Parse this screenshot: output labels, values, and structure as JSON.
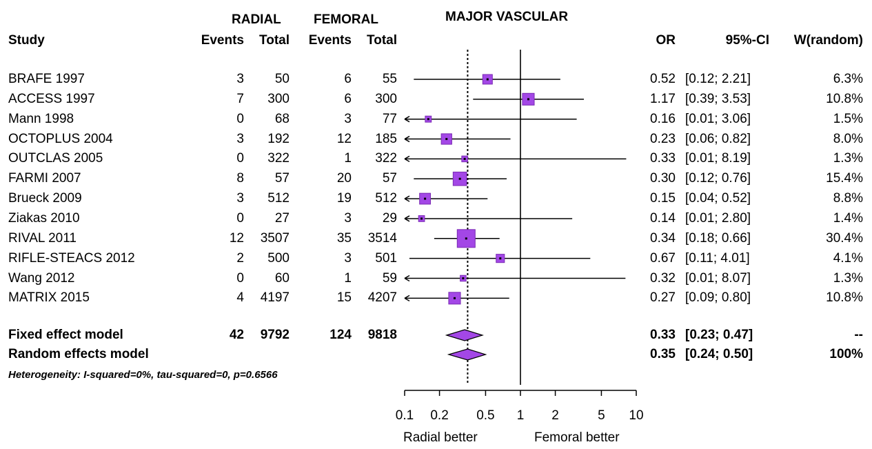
{
  "headers": {
    "plot_title": "MAJOR VASCULAR",
    "radial": "RADIAL",
    "femoral": "FEMORAL",
    "study": "Study",
    "events": "Events",
    "total": "Total",
    "or": "OR",
    "ci": "95%-CI",
    "weight": "W(random)"
  },
  "studies": [
    {
      "name": "BRAFE 1997",
      "r_events": "3",
      "r_total": "50",
      "f_events": "6",
      "f_total": "55",
      "or_text": "0.52",
      "ci_text": "[0.12; 2.21]",
      "w_text": "6.3%"
    },
    {
      "name": "ACCESS 1997",
      "r_events": "7",
      "r_total": "300",
      "f_events": "6",
      "f_total": "300",
      "or_text": "1.17",
      "ci_text": "[0.39; 3.53]",
      "w_text": "10.8%"
    },
    {
      "name": "Mann 1998",
      "r_events": "0",
      "r_total": "68",
      "f_events": "3",
      "f_total": "77",
      "or_text": "0.16",
      "ci_text": "[0.01; 3.06]",
      "w_text": "1.5%"
    },
    {
      "name": "OCTOPLUS 2004",
      "r_events": "3",
      "r_total": "192",
      "f_events": "12",
      "f_total": "185",
      "or_text": "0.23",
      "ci_text": "[0.06; 0.82]",
      "w_text": "8.0%"
    },
    {
      "name": "OUTCLAS 2005",
      "r_events": "0",
      "r_total": "322",
      "f_events": "1",
      "f_total": "322",
      "or_text": "0.33",
      "ci_text": "[0.01; 8.19]",
      "w_text": "1.3%"
    },
    {
      "name": "FARMI 2007",
      "r_events": "8",
      "r_total": "57",
      "f_events": "20",
      "f_total": "57",
      "or_text": "0.30",
      "ci_text": "[0.12; 0.76]",
      "w_text": "15.4%"
    },
    {
      "name": "Brueck 2009",
      "r_events": "3",
      "r_total": "512",
      "f_events": "19",
      "f_total": "512",
      "or_text": "0.15",
      "ci_text": "[0.04; 0.52]",
      "w_text": "8.8%"
    },
    {
      "name": "Ziakas 2010",
      "r_events": "0",
      "r_total": "27",
      "f_events": "3",
      "f_total": "29",
      "or_text": "0.14",
      "ci_text": "[0.01; 2.80]",
      "w_text": "1.4%"
    },
    {
      "name": "RIVAL 2011",
      "r_events": "12",
      "r_total": "3507",
      "f_events": "35",
      "f_total": "3514",
      "or_text": "0.34",
      "ci_text": "[0.18; 0.66]",
      "w_text": "30.4%"
    },
    {
      "name": "RIFLE-STEACS 2012",
      "r_events": "2",
      "r_total": "500",
      "f_events": "3",
      "f_total": "501",
      "or_text": "0.67",
      "ci_text": "[0.11; 4.01]",
      "w_text": "4.1%"
    },
    {
      "name": "Wang  2012",
      "r_events": "0",
      "r_total": "60",
      "f_events": "1",
      "f_total": "59",
      "or_text": "0.32",
      "ci_text": "[0.01; 8.07]",
      "w_text": "1.3%"
    },
    {
      "name": "MATRIX 2015",
      "r_events": "4",
      "r_total": "4197",
      "f_events": "15",
      "f_total": "4207",
      "or_text": "0.27",
      "ci_text": "[0.09; 0.80]",
      "w_text": "10.8%"
    }
  ],
  "models": [
    {
      "name": "Fixed effect model",
      "r_events": "42",
      "r_total": "9792",
      "f_events": "124",
      "f_total": "9818",
      "or_text": "0.33",
      "ci_text": "[0.23; 0.47]",
      "w_text": "--"
    },
    {
      "name": "Random effects model",
      "r_events": "",
      "r_total": "",
      "f_events": "",
      "f_total": "",
      "or_text": "0.35",
      "ci_text": "[0.24; 0.50]",
      "w_text": "100%"
    }
  ],
  "heterogeneity": "Heterogeneity: I-squared=0%, tau-squared=0, p=0.6566",
  "x_axis": {
    "ticks": [
      0.1,
      0.2,
      0.5,
      1,
      2,
      5,
      10
    ],
    "tick_labels": [
      "0.1",
      "0.2",
      "0.5",
      "1",
      "2",
      "5",
      "10"
    ],
    "left_label": "Radial better",
    "right_label": "Femoral better"
  },
  "chart_data": {
    "type": "forest",
    "scale": "log",
    "xlim": [
      0.1,
      10
    ],
    "reference_line": 1,
    "pooled_line": 0.35,
    "colors": {
      "box": "#a347e6",
      "box_border": "#7a2bb3",
      "line": "#000000"
    },
    "studies": [
      {
        "or": 0.52,
        "lower": 0.12,
        "upper": 2.21,
        "weight": 6.3
      },
      {
        "or": 1.17,
        "lower": 0.39,
        "upper": 3.53,
        "weight": 10.8
      },
      {
        "or": 0.16,
        "lower": 0.01,
        "upper": 3.06,
        "weight": 1.5
      },
      {
        "or": 0.23,
        "lower": 0.06,
        "upper": 0.82,
        "weight": 8.0
      },
      {
        "or": 0.33,
        "lower": 0.01,
        "upper": 8.19,
        "weight": 1.3
      },
      {
        "or": 0.3,
        "lower": 0.12,
        "upper": 0.76,
        "weight": 15.4
      },
      {
        "or": 0.15,
        "lower": 0.04,
        "upper": 0.52,
        "weight": 8.8
      },
      {
        "or": 0.14,
        "lower": 0.01,
        "upper": 2.8,
        "weight": 1.4
      },
      {
        "or": 0.34,
        "lower": 0.18,
        "upper": 0.66,
        "weight": 30.4
      },
      {
        "or": 0.67,
        "lower": 0.11,
        "upper": 4.01,
        "weight": 4.1
      },
      {
        "or": 0.32,
        "lower": 0.01,
        "upper": 8.07,
        "weight": 1.3
      },
      {
        "or": 0.27,
        "lower": 0.09,
        "upper": 0.8,
        "weight": 10.8
      }
    ],
    "pooled": [
      {
        "model": "fixed",
        "or": 0.33,
        "lower": 0.23,
        "upper": 0.47
      },
      {
        "model": "random",
        "or": 0.35,
        "lower": 0.24,
        "upper": 0.5
      }
    ]
  }
}
